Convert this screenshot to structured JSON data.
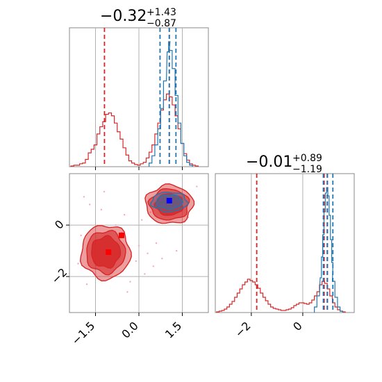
{
  "chart_data": {
    "type": "corner",
    "colors": {
      "red": "#d62728",
      "blue": "#1f77b4",
      "grid": "#b0b0b0",
      "scatter": "#f7a8c4"
    },
    "panels": [
      {
        "id": "hist-x",
        "type": "histogram",
        "title": {
          "value": "−0.32",
          "upper": "+1.43",
          "lower": "−0.87"
        },
        "xlim": [
          -2.4,
          2.4
        ],
        "grid_x": [
          -1.5,
          0.0,
          1.5
        ],
        "series": [
          {
            "name": "red",
            "color": "#d62728",
            "bins": [
              {
                "x": -2.3,
                "h": 1
              },
              {
                "x": -2.2,
                "h": 2
              },
              {
                "x": -2.1,
                "h": 2
              },
              {
                "x": -2.0,
                "h": 4
              },
              {
                "x": -1.9,
                "h": 5
              },
              {
                "x": -1.8,
                "h": 10
              },
              {
                "x": -1.7,
                "h": 19
              },
              {
                "x": -1.6,
                "h": 24
              },
              {
                "x": -1.5,
                "h": 30
              },
              {
                "x": -1.4,
                "h": 45
              },
              {
                "x": -1.3,
                "h": 55
              },
              {
                "x": -1.2,
                "h": 62
              },
              {
                "x": -1.1,
                "h": 72
              },
              {
                "x": -1.0,
                "h": 74
              },
              {
                "x": -0.9,
                "h": 70
              },
              {
                "x": -0.8,
                "h": 60
              },
              {
                "x": -0.7,
                "h": 48
              },
              {
                "x": -0.6,
                "h": 38
              },
              {
                "x": -0.5,
                "h": 26
              },
              {
                "x": -0.4,
                "h": 16
              },
              {
                "x": -0.3,
                "h": 8
              },
              {
                "x": -0.2,
                "h": 5
              },
              {
                "x": -0.1,
                "h": 3
              },
              {
                "x": 0.0,
                "h": 2
              },
              {
                "x": 0.1,
                "h": 4
              },
              {
                "x": 0.2,
                "h": 6
              },
              {
                "x": 0.3,
                "h": 12
              },
              {
                "x": 0.4,
                "h": 20
              },
              {
                "x": 0.5,
                "h": 30
              },
              {
                "x": 0.6,
                "h": 45
              },
              {
                "x": 0.7,
                "h": 60
              },
              {
                "x": 0.8,
                "h": 78
              },
              {
                "x": 0.9,
                "h": 92
              },
              {
                "x": 1.0,
                "h": 100
              },
              {
                "x": 1.1,
                "h": 96
              },
              {
                "x": 1.2,
                "h": 85
              },
              {
                "x": 1.3,
                "h": 70
              },
              {
                "x": 1.4,
                "h": 52
              },
              {
                "x": 1.5,
                "h": 32
              },
              {
                "x": 1.6,
                "h": 18
              },
              {
                "x": 1.7,
                "h": 9
              },
              {
                "x": 1.8,
                "h": 4
              },
              {
                "x": 1.9,
                "h": 2
              },
              {
                "x": 2.0,
                "h": 1
              }
            ]
          },
          {
            "name": "blue",
            "color": "#1f77b4",
            "bins": [
              {
                "x": 0.4,
                "h": 5
              },
              {
                "x": 0.5,
                "h": 15
              },
              {
                "x": 0.6,
                "h": 30
              },
              {
                "x": 0.7,
                "h": 52
              },
              {
                "x": 0.8,
                "h": 80
              },
              {
                "x": 0.9,
                "h": 118
              },
              {
                "x": 1.0,
                "h": 158
              },
              {
                "x": 1.05,
                "h": 172
              },
              {
                "x": 1.1,
                "h": 160
              },
              {
                "x": 1.2,
                "h": 135
              },
              {
                "x": 1.3,
                "h": 98
              },
              {
                "x": 1.4,
                "h": 60
              },
              {
                "x": 1.5,
                "h": 32
              },
              {
                "x": 1.6,
                "h": 15
              },
              {
                "x": 1.7,
                "h": 6
              },
              {
                "x": 1.8,
                "h": 2
              }
            ]
          }
        ],
        "vlines": [
          {
            "x": -1.19,
            "color": "#d62728"
          },
          {
            "x": 1.05,
            "color": "#d62728"
          },
          {
            "x": 0.73,
            "color": "#1f77b4"
          },
          {
            "x": 1.05,
            "color": "#1f77b4"
          },
          {
            "x": 1.28,
            "color": "#1f77b4"
          }
        ]
      },
      {
        "id": "hist-y",
        "type": "histogram",
        "title": {
          "value": "−0.01",
          "upper": "+0.89",
          "lower": "−1.19"
        },
        "xlim": [
          -3.4,
          2.0
        ],
        "grid_x": [
          -2,
          0
        ],
        "xticks": [
          "−2",
          "0"
        ],
        "series": [
          {
            "name": "red",
            "color": "#d62728",
            "bins": [
              {
                "x": -3.3,
                "h": 1
              },
              {
                "x": -3.2,
                "h": 2
              },
              {
                "x": -3.1,
                "h": 3
              },
              {
                "x": -3.0,
                "h": 5
              },
              {
                "x": -2.9,
                "h": 8
              },
              {
                "x": -2.8,
                "h": 12
              },
              {
                "x": -2.7,
                "h": 16
              },
              {
                "x": -2.6,
                "h": 22
              },
              {
                "x": -2.5,
                "h": 28
              },
              {
                "x": -2.4,
                "h": 34
              },
              {
                "x": -2.3,
                "h": 40
              },
              {
                "x": -2.2,
                "h": 44
              },
              {
                "x": -2.1,
                "h": 48
              },
              {
                "x": -2.0,
                "h": 46
              },
              {
                "x": -1.9,
                "h": 44
              },
              {
                "x": -1.8,
                "h": 40
              },
              {
                "x": -1.7,
                "h": 35
              },
              {
                "x": -1.6,
                "h": 28
              },
              {
                "x": -1.5,
                "h": 22
              },
              {
                "x": -1.4,
                "h": 17
              },
              {
                "x": -1.3,
                "h": 12
              },
              {
                "x": -1.2,
                "h": 8
              },
              {
                "x": -1.1,
                "h": 6
              },
              {
                "x": -1.0,
                "h": 5
              },
              {
                "x": -0.9,
                "h": 4
              },
              {
                "x": -0.8,
                "h": 3
              },
              {
                "x": -0.7,
                "h": 3
              },
              {
                "x": -0.6,
                "h": 4
              },
              {
                "x": -0.5,
                "h": 5
              },
              {
                "x": -0.4,
                "h": 7
              },
              {
                "x": -0.3,
                "h": 10
              },
              {
                "x": -0.2,
                "h": 12
              },
              {
                "x": -0.1,
                "h": 14
              },
              {
                "x": 0.0,
                "h": 14
              },
              {
                "x": 0.1,
                "h": 13
              },
              {
                "x": 0.2,
                "h": 12
              },
              {
                "x": 0.3,
                "h": 14
              },
              {
                "x": 0.4,
                "h": 18
              },
              {
                "x": 0.5,
                "h": 24
              },
              {
                "x": 0.6,
                "h": 30
              },
              {
                "x": 0.7,
                "h": 40
              },
              {
                "x": 0.8,
                "h": 45
              },
              {
                "x": 0.9,
                "h": 42
              },
              {
                "x": 1.0,
                "h": 34
              },
              {
                "x": 1.1,
                "h": 24
              },
              {
                "x": 1.2,
                "h": 14
              },
              {
                "x": 1.3,
                "h": 8
              },
              {
                "x": 1.4,
                "h": 4
              },
              {
                "x": 1.5,
                "h": 2
              },
              {
                "x": 1.6,
                "h": 1
              }
            ]
          },
          {
            "name": "blue",
            "color": "#1f77b4",
            "bins": [
              {
                "x": 0.5,
                "h": 8
              },
              {
                "x": 0.6,
                "h": 24
              },
              {
                "x": 0.7,
                "h": 50
              },
              {
                "x": 0.75,
                "h": 80
              },
              {
                "x": 0.8,
                "h": 112
              },
              {
                "x": 0.85,
                "h": 145
              },
              {
                "x": 0.9,
                "h": 172
              },
              {
                "x": 0.95,
                "h": 180
              },
              {
                "x": 1.0,
                "h": 168
              },
              {
                "x": 1.05,
                "h": 140
              },
              {
                "x": 1.1,
                "h": 105
              },
              {
                "x": 1.15,
                "h": 72
              },
              {
                "x": 1.2,
                "h": 45
              },
              {
                "x": 1.3,
                "h": 22
              },
              {
                "x": 1.4,
                "h": 8
              },
              {
                "x": 1.5,
                "h": 2
              }
            ]
          }
        ],
        "vlines": [
          {
            "x": -1.79,
            "color": "#d62728"
          },
          {
            "x": 0.83,
            "color": "#d62728"
          },
          {
            "x": 0.95,
            "color": "#d62728"
          },
          {
            "x": 0.8,
            "color": "#1f77b4"
          },
          {
            "x": 0.96,
            "color": "#1f77b4"
          },
          {
            "x": 1.17,
            "color": "#1f77b4"
          }
        ]
      },
      {
        "id": "joint",
        "type": "contour",
        "xlim": [
          -2.4,
          2.4
        ],
        "ylim": [
          -3.4,
          2.0
        ],
        "grid_x": [
          -1.5,
          0.0,
          1.5
        ],
        "grid_y": [
          -2,
          0
        ],
        "xticks": [
          "−1.5",
          "0.0",
          "1.5"
        ],
        "yticks": [
          "0",
          "−2"
        ],
        "scatter": [
          [
            -1.9,
            1.1
          ],
          [
            -1.7,
            0.8
          ],
          [
            -2.0,
            -0.4
          ],
          [
            -1.5,
            -1.9
          ],
          [
            -0.3,
            -2.2
          ],
          [
            -0.1,
            -1.4
          ],
          [
            0.0,
            -0.8
          ],
          [
            0.3,
            -1.1
          ],
          [
            0.6,
            -0.7
          ],
          [
            -0.5,
            0.4
          ],
          [
            -1.2,
            1.3
          ],
          [
            0.1,
            0.2
          ],
          [
            -0.8,
            0.0
          ],
          [
            0.5,
            -1.6
          ],
          [
            1.3,
            -1.0
          ],
          [
            -2.1,
            -1.5
          ],
          [
            -0.4,
            -2.6
          ],
          [
            0.8,
            -1.3
          ],
          [
            1.7,
            0.3
          ],
          [
            2.0,
            1.5
          ],
          [
            -1.3,
            0.6
          ],
          [
            0.4,
            0.5
          ],
          [
            -0.6,
            -0.3
          ],
          [
            0.2,
            -1.9
          ],
          [
            -1.8,
            -2.3
          ]
        ],
        "regions": [
          {
            "name": "red-cluster",
            "color": "#d62728",
            "center": [
              -1.15,
              -1.05
            ],
            "sx": [
              0.85,
              0.67,
              0.5
            ],
            "sy": [
              1.05,
              0.82,
              0.6
            ]
          },
          {
            "name": "red-cluster",
            "color": "#d62728",
            "center": [
              1.05,
              0.8
            ],
            "sx": [
              0.82,
              0.68,
              0.48
            ],
            "sy": [
              0.75,
              0.6,
              0.42
            ]
          },
          {
            "name": "blue-cluster",
            "color": "#1f77b4",
            "center": [
              1.05,
              0.9
            ],
            "sx": [
              0.62,
              0.45
            ],
            "sy": [
              0.38,
              0.27
            ]
          }
        ],
        "markers": [
          {
            "x": -1.05,
            "y": -1.05,
            "color": "#ff0000"
          },
          {
            "x": -0.6,
            "y": -0.4,
            "color": "#ff0000"
          },
          {
            "x": 1.05,
            "y": 0.95,
            "color": "#0000ff"
          }
        ]
      }
    ]
  }
}
